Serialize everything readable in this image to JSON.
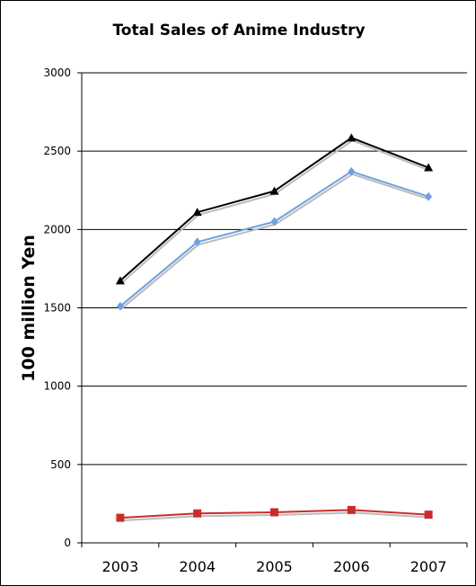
{
  "chart_data": {
    "type": "line",
    "title": "Total Sales of Anime Industry",
    "xlabel": "",
    "ylabel": "100 million Yen",
    "categories": [
      "2003",
      "2004",
      "2005",
      "2006",
      "2007"
    ],
    "ylim": [
      0,
      3000
    ],
    "yticks": [
      "0",
      "500",
      "1000",
      "1500",
      "2000",
      "2500",
      "3000"
    ],
    "grid": "horizontal",
    "legend": "none",
    "series": [
      {
        "values": [
          1673,
          2110,
          2245,
          2585,
          2395
        ],
        "color": "#000000",
        "marker": "triangle"
      },
      {
        "values": [
          1510,
          1920,
          2050,
          2370,
          2210
        ],
        "color": "#6ea1e0",
        "marker": "diamond"
      },
      {
        "values": [
          160,
          188,
          195,
          210,
          180
        ],
        "color": "#cc2b2b",
        "marker": "square"
      }
    ]
  }
}
